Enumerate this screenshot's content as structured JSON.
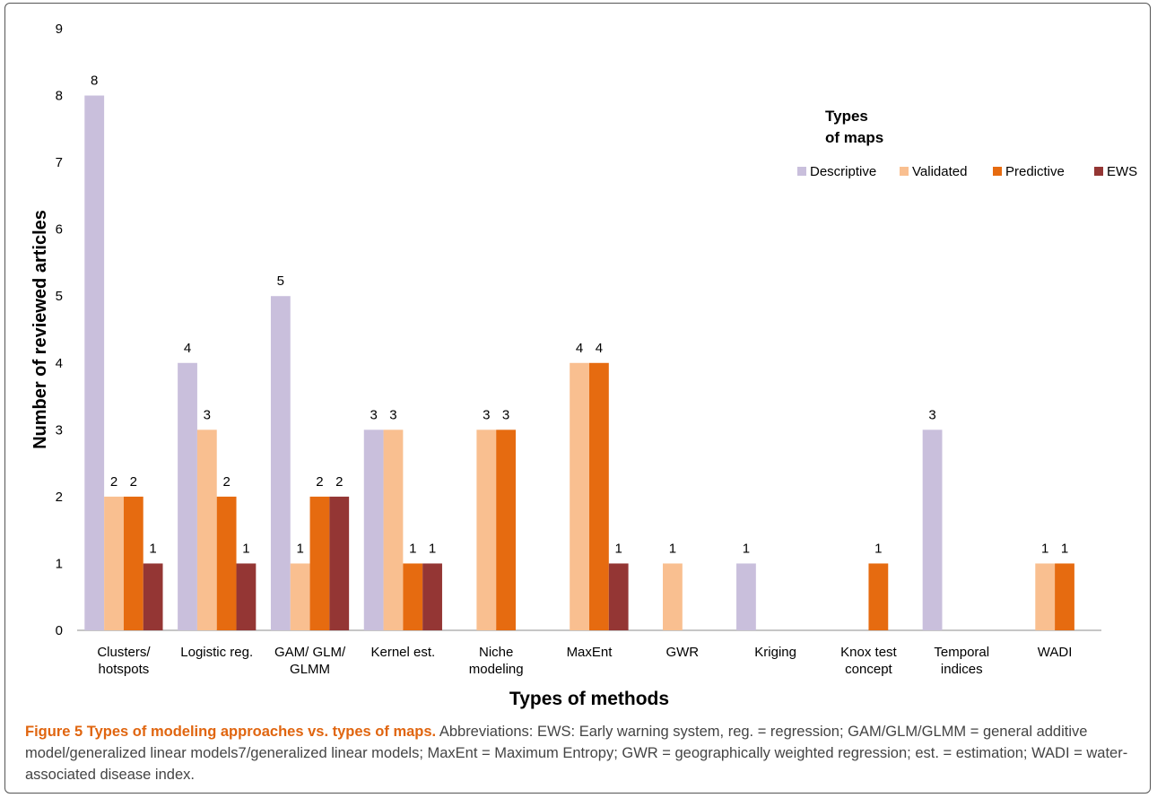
{
  "chart_data": {
    "type": "bar",
    "xlabel": "Types of methods",
    "ylabel": "Number of reviewed articles",
    "ylim": [
      0,
      9
    ],
    "yticks": [
      "0",
      "1",
      "2",
      "3",
      "4",
      "5",
      "6",
      "7",
      "8",
      "9"
    ],
    "grid": false,
    "legend": {
      "title": "Types\nof maps",
      "placement": "top-right"
    },
    "categories": [
      "Clusters/\nhotspots",
      "Logistic reg.",
      "GAM/ GLM/\nGLMM",
      "Kernel est.",
      "Niche\nmodeling",
      "MaxEnt",
      "GWR",
      "Kriging",
      "Knox test\nconcept",
      "Temporal\nindices",
      "WADI"
    ],
    "series": [
      {
        "name": "Descriptive",
        "color": "#c9bfdc",
        "values": [
          8,
          4,
          5,
          3,
          null,
          null,
          null,
          1,
          null,
          3,
          null
        ]
      },
      {
        "name": "Validated",
        "color": "#f9bf90",
        "values": [
          2,
          3,
          1,
          3,
          3,
          4,
          1,
          null,
          null,
          null,
          1
        ]
      },
      {
        "name": "Predictive",
        "color": "#e66b10",
        "values": [
          2,
          2,
          2,
          1,
          3,
          4,
          null,
          null,
          1,
          null,
          1
        ]
      },
      {
        "name": "EWS",
        "color": "#943634",
        "values": [
          1,
          1,
          2,
          1,
          null,
          1,
          null,
          null,
          null,
          null,
          null
        ]
      }
    ]
  },
  "caption": {
    "label": "Figure 5 Types of modeling approaches vs. types of maps.",
    "text": " Abbreviations: EWS: Early warning system, reg. = regression; GAM/GLM/GLMM = general additive model/generalized linear models7/generalized linear models; MaxEnt = Maximum Entropy; GWR = geographically weighted regression; est. = estimation; WADI = water-associated disease index."
  }
}
